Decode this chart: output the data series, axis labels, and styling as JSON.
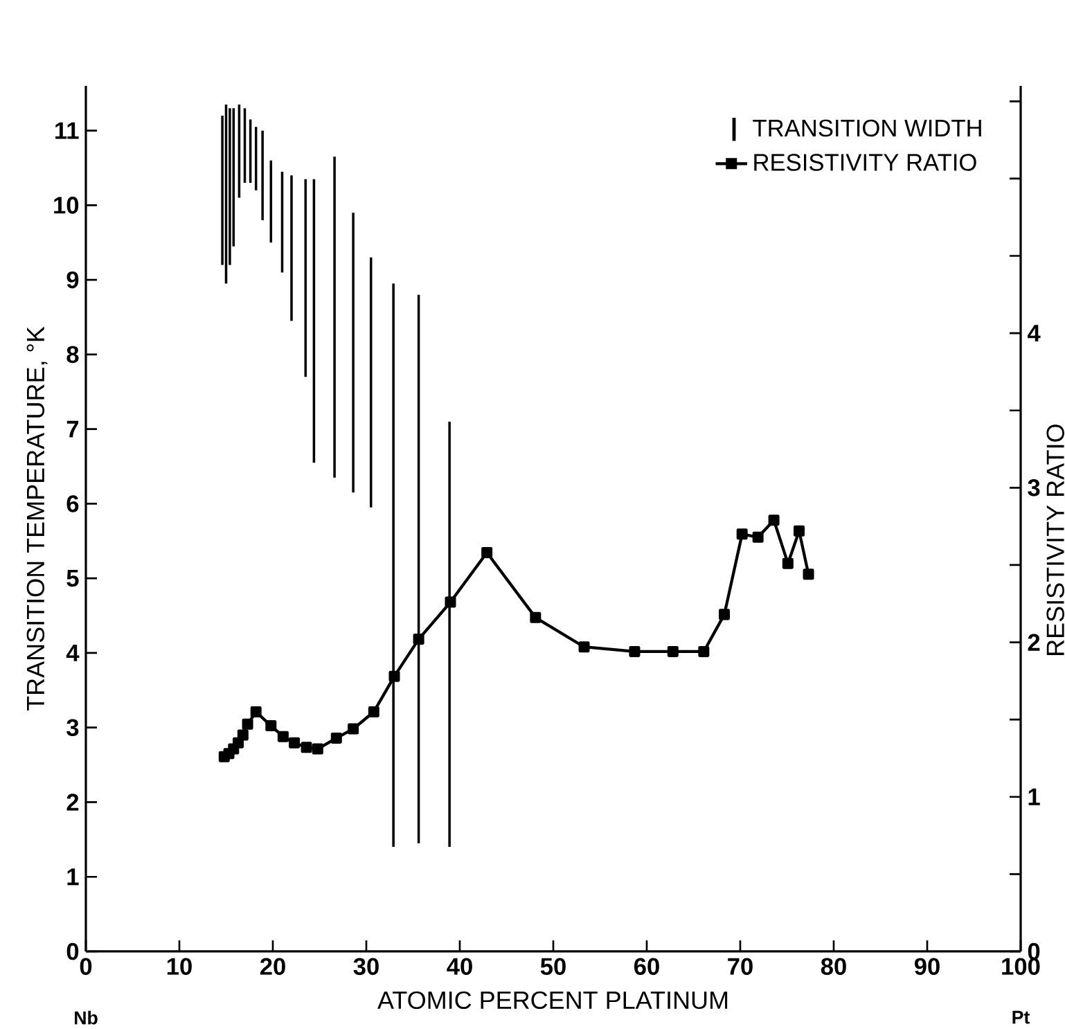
{
  "chart_data": {
    "type": "line",
    "xlabel": "ATOMIC PERCENT PLATINUM",
    "ylabel": "TRANSITION TEMPERATURE, °K",
    "y2label": "RESISTIVITY RATIO",
    "annotations": [
      "Nb",
      "Pt"
    ],
    "xlim": [
      0,
      100
    ],
    "xticks": [
      0,
      10,
      20,
      30,
      40,
      50,
      60,
      70,
      80,
      90,
      100
    ],
    "ylim": [
      0,
      11.6
    ],
    "yticks": [
      0,
      1,
      2,
      3,
      4,
      5,
      6,
      7,
      8,
      9,
      10,
      11
    ],
    "y2lim": [
      0,
      5.6
    ],
    "y2ticks": [
      0,
      {
        "value": 0.5,
        "label": null
      },
      1,
      {
        "value": 1.5,
        "label": null
      },
      2,
      {
        "value": 2.5,
        "label": null
      },
      3,
      {
        "value": 3.5,
        "label": null
      },
      4,
      {
        "value": 4.5,
        "label": null
      },
      {
        "value": 5,
        "label": null
      },
      {
        "value": 5.5,
        "label": null
      }
    ],
    "legend": "top right",
    "marker": "square",
    "line_style": "solid",
    "series": [
      {
        "name": "TRANSITION WIDTH",
        "type": "bar",
        "color": "#000000",
        "x": [
          14.6,
          15.0,
          15.4,
          15.8,
          16.4,
          17.0,
          17.6,
          18.2,
          18.9,
          19.8,
          21.0,
          22.0,
          23.5,
          24.4,
          26.6,
          28.6,
          30.5,
          32.9,
          35.6,
          38.9
        ],
        "base": [
          9.2,
          8.95,
          9.2,
          9.45,
          10.1,
          10.3,
          10.3,
          10.2,
          9.8,
          9.5,
          9.1,
          8.45,
          7.7,
          6.55,
          6.35,
          6.15,
          5.95,
          1.4,
          1.45,
          1.4
        ],
        "values": [
          2.0,
          2.4,
          2.1,
          1.85,
          1.25,
          1.0,
          0.85,
          0.85,
          1.2,
          1.1,
          1.35,
          1.95,
          2.65,
          3.8,
          4.3,
          3.75,
          3.35,
          7.55,
          7.35,
          5.7
        ]
      },
      {
        "name": "RESISTIVITY RATIO",
        "axis": "y2",
        "color": "#000000",
        "x": [
          14.8,
          15.3,
          15.8,
          16.3,
          16.8,
          17.3,
          18.2,
          19.8,
          21.1,
          22.3,
          23.6,
          24.8,
          26.8,
          28.6,
          30.8,
          33.0,
          35.6,
          39.0,
          42.9,
          48.1,
          53.3,
          58.7,
          62.8,
          66.1,
          68.3,
          70.2,
          71.9,
          73.6,
          75.1,
          76.3,
          77.3
        ],
        "values": [
          1.26,
          1.28,
          1.31,
          1.35,
          1.4,
          1.47,
          1.55,
          1.46,
          1.39,
          1.35,
          1.32,
          1.31,
          1.38,
          1.44,
          1.55,
          1.78,
          2.02,
          2.26,
          2.58,
          2.16,
          1.97,
          1.94,
          1.94,
          1.94,
          2.18,
          2.7,
          2.68,
          2.79,
          2.51,
          2.72,
          2.44
        ]
      }
    ]
  }
}
